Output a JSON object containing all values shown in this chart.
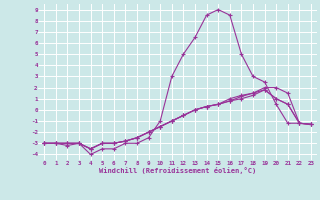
{
  "background_color": "#cce8e8",
  "grid_color": "#ffffff",
  "line_color": "#993399",
  "xlabel": "Windchill (Refroidissement éolien,°C)",
  "ylim": [
    -4.5,
    9.5
  ],
  "xlim": [
    -0.5,
    23.5
  ],
  "yticks": [
    -4,
    -3,
    -2,
    -1,
    0,
    1,
    2,
    3,
    4,
    5,
    6,
    7,
    8,
    9
  ],
  "xticks": [
    0,
    1,
    2,
    3,
    4,
    5,
    6,
    7,
    8,
    9,
    10,
    11,
    12,
    13,
    14,
    15,
    16,
    17,
    18,
    19,
    20,
    21,
    22,
    23
  ],
  "line1_x": [
    0,
    1,
    2,
    3,
    4,
    5,
    6,
    7,
    8,
    9,
    10,
    11,
    12,
    13,
    14,
    15,
    16,
    17,
    18,
    19,
    20,
    21,
    22,
    23
  ],
  "line1_y": [
    -3.0,
    -3.0,
    -3.2,
    -3.0,
    -4.0,
    -3.5,
    -3.5,
    -3.0,
    -3.0,
    -2.5,
    -1.0,
    3.0,
    5.0,
    6.5,
    8.5,
    9.0,
    8.5,
    5.0,
    3.0,
    2.5,
    0.5,
    -1.2,
    -1.2,
    -1.3
  ],
  "line2_x": [
    0,
    1,
    2,
    3,
    4,
    5,
    6,
    7,
    8,
    9,
    10,
    11,
    12,
    13,
    14,
    15,
    16,
    17,
    18,
    19,
    20,
    21,
    22,
    23
  ],
  "line2_y": [
    -3.0,
    -3.0,
    -3.0,
    -3.0,
    -3.5,
    -3.0,
    -3.0,
    -2.8,
    -2.5,
    -2.0,
    -1.5,
    -1.0,
    -0.5,
    0.0,
    0.3,
    0.5,
    0.8,
    1.2,
    1.5,
    1.8,
    1.0,
    0.5,
    -1.2,
    -1.3
  ],
  "line3_x": [
    0,
    1,
    2,
    3,
    4,
    5,
    6,
    7,
    8,
    9,
    10,
    11,
    12,
    13,
    14,
    15,
    16,
    17,
    18,
    19,
    20,
    21,
    22,
    23
  ],
  "line3_y": [
    -3.0,
    -3.0,
    -3.0,
    -3.0,
    -3.5,
    -3.0,
    -3.0,
    -2.8,
    -2.5,
    -2.0,
    -1.5,
    -1.0,
    -0.5,
    0.0,
    0.3,
    0.5,
    1.0,
    1.3,
    1.5,
    2.0,
    2.0,
    1.5,
    -1.2,
    -1.3
  ],
  "line4_x": [
    0,
    1,
    2,
    3,
    4,
    5,
    6,
    7,
    8,
    9,
    10,
    11,
    12,
    13,
    14,
    15,
    16,
    17,
    18,
    19,
    20,
    21,
    22,
    23
  ],
  "line4_y": [
    -3.0,
    -3.0,
    -3.0,
    -3.0,
    -3.5,
    -3.0,
    -3.0,
    -2.8,
    -2.5,
    -2.0,
    -1.5,
    -1.0,
    -0.5,
    0.0,
    0.3,
    0.5,
    0.8,
    1.0,
    1.3,
    1.8,
    1.0,
    0.5,
    -1.2,
    -1.3
  ]
}
